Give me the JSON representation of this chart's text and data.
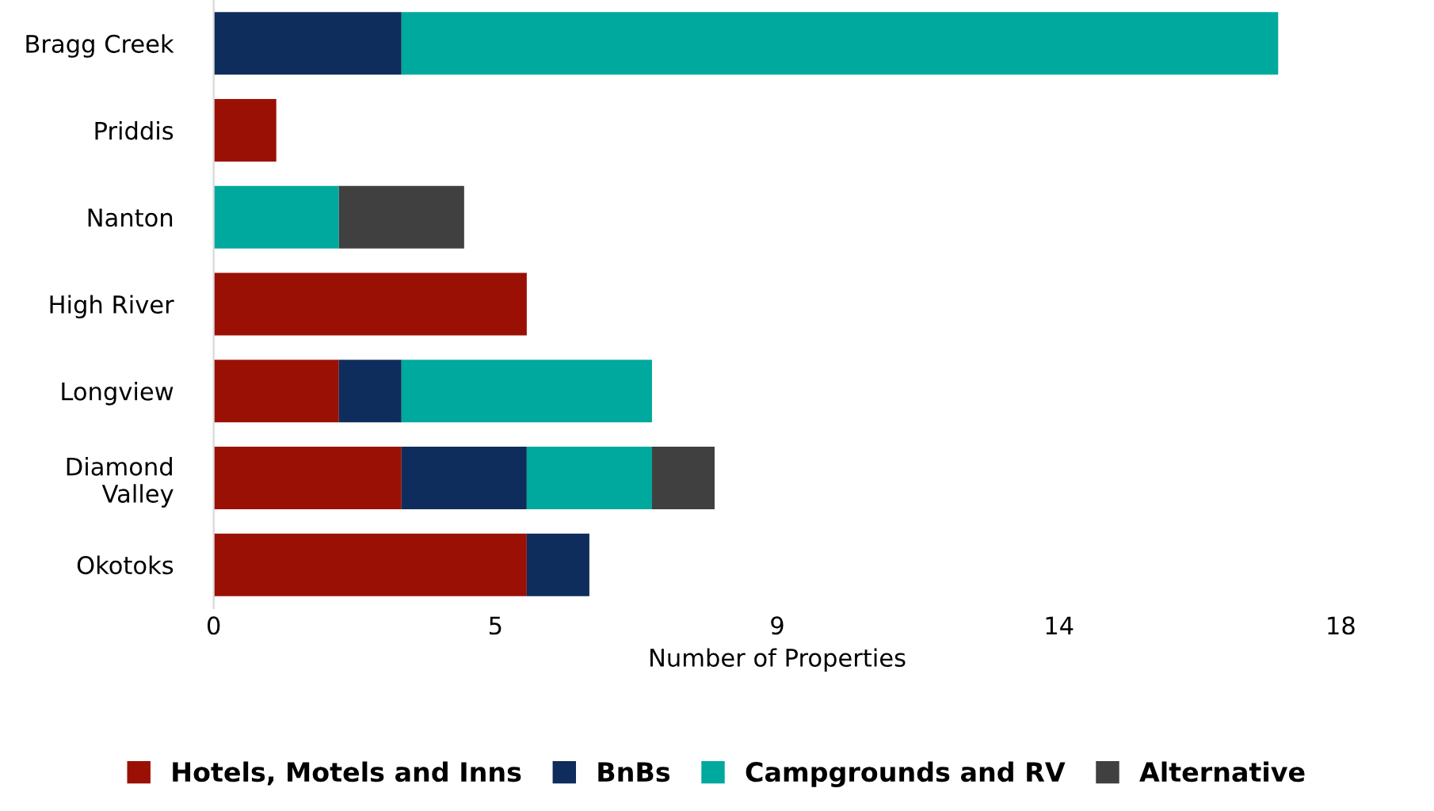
{
  "chart_data": {
    "type": "bar",
    "orientation": "horizontal",
    "stacked": true,
    "xlabel": "Number of Properties",
    "categories": [
      "Bragg Creek",
      "Priddis",
      "Nanton",
      "High River",
      "Longview",
      "Diamond\nValley",
      "Okotoks"
    ],
    "series": [
      {
        "name": "Hotels, Motels and Inns",
        "color": "#9b1005",
        "values": [
          null,
          1,
          null,
          5,
          2,
          3,
          5
        ]
      },
      {
        "name": "BnBs",
        "color": "#0e2d5c",
        "values": [
          3,
          null,
          null,
          null,
          1,
          2,
          1
        ]
      },
      {
        "name": "Campgrounds and RV",
        "color": "#00a99d",
        "values": [
          14,
          null,
          2,
          null,
          4,
          2,
          null
        ]
      },
      {
        "name": "Alternative",
        "color": "#404040",
        "values": [
          null,
          null,
          2,
          null,
          null,
          1,
          null
        ]
      }
    ],
    "xlim": [
      0,
      18
    ],
    "xticks": [
      0,
      {
        "value": 4.5,
        "label": "5"
      },
      9,
      {
        "value": 13.5,
        "label": "14"
      },
      18
    ],
    "grid": false,
    "legend": "bottom"
  }
}
